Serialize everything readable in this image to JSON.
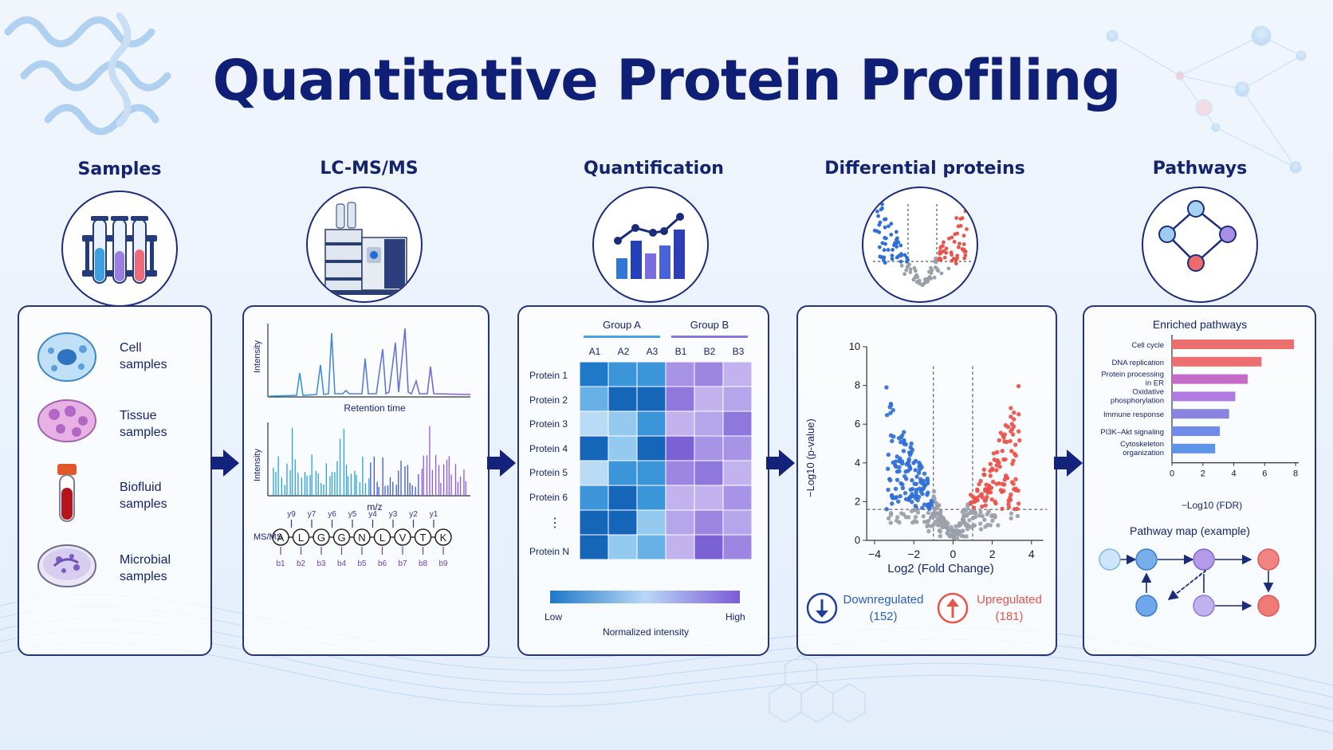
{
  "title": "Quantitative Protein Profiling",
  "stages": {
    "samples": "Samples",
    "lcms": "LC-MS/MS",
    "quant": "Quantification",
    "diff": "Differential proteins",
    "pathways": "Pathways"
  },
  "samples_panel": {
    "items": [
      {
        "line1": "Cell",
        "line2": "samples",
        "icon": "cell-icon"
      },
      {
        "line1": "Tissue",
        "line2": "samples",
        "icon": "tissue-icon"
      },
      {
        "line1": "Biofluid",
        "line2": "samples",
        "icon": "blood-tube-icon"
      },
      {
        "line1": "Microbial",
        "line2": "samples",
        "icon": "petri-dish-icon"
      }
    ]
  },
  "lcms_panel": {
    "chrom_ylabel": "Intensity",
    "chrom_xlabel": "Retention time",
    "ms_ylabel": "Intensity",
    "ms_xlabel": "m/z",
    "msms_label": "MS/MS",
    "peptide": [
      "A",
      "L",
      "G",
      "G",
      "N",
      "L",
      "V",
      "T",
      "K"
    ],
    "y_ions": [
      "y9",
      "y7",
      "y6",
      "y5",
      "y4",
      "y3",
      "y2",
      "y1"
    ],
    "b_ions": [
      "b1",
      "b2",
      "b3",
      "b4",
      "b5",
      "b6",
      "b7",
      "b8",
      "b9"
    ]
  },
  "quant_panel": {
    "group_a": "Group A",
    "group_b": "Group B",
    "columns": [
      "A1",
      "A2",
      "A3",
      "B1",
      "B2",
      "B3"
    ],
    "rows": [
      "Protein 1",
      "Protein 2",
      "Protein 3",
      "Protein 4",
      "Protein 5",
      "Protein 6"
    ],
    "ellipsis": "⋮",
    "last_row": "Protein N",
    "legend_low": "Low",
    "legend_high": "High",
    "legend_title": "Normalized intensity",
    "colors": {
      "low": "#1e78c8",
      "high": "#7d5ad8"
    }
  },
  "diff_panel": {
    "xlabel": "Log2 (Fold Change)",
    "ylabel": "−Log10 (p-value)",
    "xticks": [
      "−4",
      "−2",
      "0",
      "2",
      "4"
    ],
    "yticks": [
      "0",
      "2",
      "4",
      "6",
      "8",
      "10"
    ],
    "down_label": "Downregulated",
    "down_count": "(152)",
    "up_label": "Upregulated",
    "up_count": "(181)",
    "colors": {
      "down": "#2f6fd6",
      "up": "#e8534a",
      "ns": "#9aa0a8"
    }
  },
  "pathways_panel": {
    "title": "Enriched pathways",
    "xlabel": "−Log10 (FDR)",
    "xticks": [
      "0",
      "2",
      "4",
      "6",
      "8"
    ],
    "map_title": "Pathway map (example)"
  },
  "chart_data": {
    "type": "bar",
    "title": "Enriched pathways",
    "xlabel": "−Log10 (FDR)",
    "xlim": [
      0,
      8
    ],
    "categories": [
      "Cell cycle",
      "DNA replication",
      "Protein processing in ER",
      "Oxidative phosphorylation",
      "Immune response",
      "PI3K–Akt signaling",
      "Cytoskeleton organization"
    ],
    "values": [
      7.9,
      5.8,
      4.9,
      4.1,
      3.7,
      3.1,
      2.8
    ],
    "colors": [
      "#ec6f70",
      "#ec6f70",
      "#c76bc8",
      "#b07be0",
      "#8a83e0",
      "#6f8ae8",
      "#5e93ea"
    ]
  }
}
